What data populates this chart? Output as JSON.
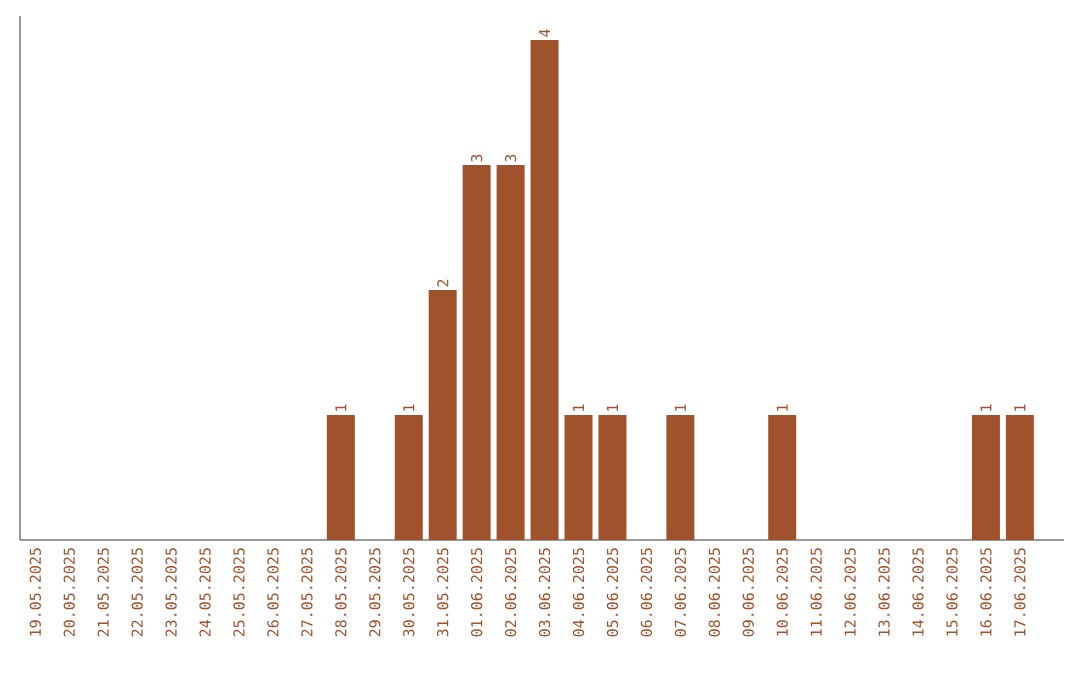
{
  "chart_data": {
    "type": "bar",
    "categories": [
      "19.05.2025",
      "20.05.2025",
      "21.05.2025",
      "22.05.2025",
      "23.05.2025",
      "24.05.2025",
      "25.05.2025",
      "26.05.2025",
      "27.05.2025",
      "28.05.2025",
      "29.05.2025",
      "30.05.2025",
      "31.05.2025",
      "01.06.2025",
      "02.06.2025",
      "03.06.2025",
      "04.06.2025",
      "05.06.2025",
      "06.06.2025",
      "07.06.2025",
      "08.06.2025",
      "09.06.2025",
      "10.06.2025",
      "11.06.2025",
      "12.06.2025",
      "13.06.2025",
      "14.06.2025",
      "15.06.2025",
      "16.06.2025",
      "17.06.2025"
    ],
    "values": [
      0,
      0,
      0,
      0,
      0,
      0,
      0,
      0,
      0,
      1,
      0,
      1,
      2,
      3,
      3,
      4,
      1,
      1,
      0,
      1,
      0,
      0,
      1,
      0,
      0,
      0,
      0,
      0,
      1,
      1
    ],
    "value_labels": [
      null,
      null,
      null,
      null,
      null,
      null,
      null,
      null,
      null,
      "1",
      null,
      "1",
      "2",
      "3",
      "3",
      "4",
      "1",
      "1",
      null,
      "1",
      null,
      null,
      "1",
      null,
      null,
      null,
      null,
      null,
      "1",
      "1"
    ],
    "color": "#a0522d",
    "grid": false,
    "tick_labels": "x"
  }
}
